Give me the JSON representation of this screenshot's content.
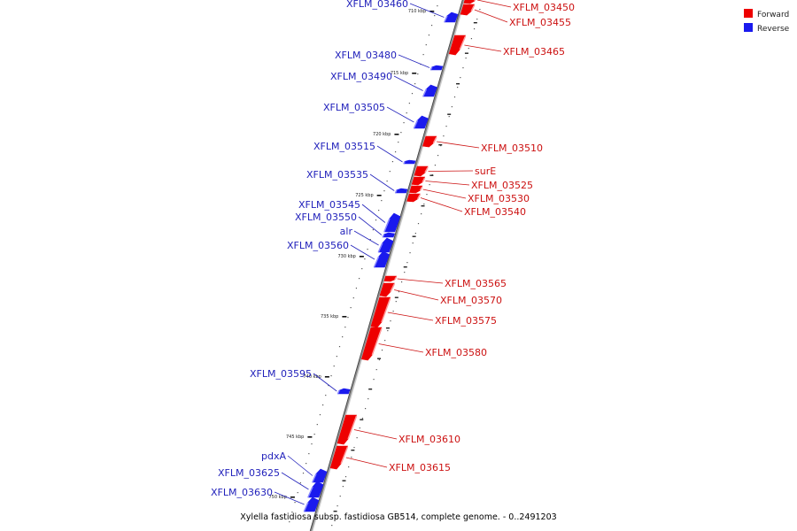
{
  "caption": "Xylella fastidiosa subsp. fastidiosa GB514, complete genome. - 0..2491203",
  "legend": {
    "forward": {
      "label": "Forward",
      "color": "#ee0000"
    },
    "reverse": {
      "label": "Reverse",
      "color": "#1a1aee"
    }
  },
  "colors": {
    "forward": "#ee0000",
    "forward_label": "#cc1111",
    "reverse": "#1a1aee",
    "reverse_label": "#2222bb",
    "backbone": "#888888"
  },
  "ticks": [
    {
      "pos": 710,
      "label": "710 kbp"
    },
    {
      "pos": 715,
      "label": "715 kbp"
    },
    {
      "pos": 720,
      "label": "720 kbp"
    },
    {
      "pos": 725,
      "label": "725 kbp"
    },
    {
      "pos": 730,
      "label": "730 kbp"
    },
    {
      "pos": 735,
      "label": "735 kbp"
    },
    {
      "pos": 740,
      "label": "740 kbp"
    },
    {
      "pos": 745,
      "label": "745 kbp"
    },
    {
      "pos": 750,
      "label": "750 kbp"
    }
  ],
  "genes": [
    {
      "name": "XFLM_03450",
      "strand": "forward"
    },
    {
      "name": "XFLM_03455",
      "strand": "forward"
    },
    {
      "name": "XFLM_03460",
      "strand": "reverse"
    },
    {
      "name": "XFLM_03465",
      "strand": "forward"
    },
    {
      "name": "XFLM_03480",
      "strand": "reverse"
    },
    {
      "name": "XFLM_03490",
      "strand": "reverse"
    },
    {
      "name": "XFLM_03505",
      "strand": "reverse"
    },
    {
      "name": "XFLM_03510",
      "strand": "forward"
    },
    {
      "name": "XFLM_03515",
      "strand": "reverse"
    },
    {
      "name": "surE",
      "strand": "forward"
    },
    {
      "name": "XFLM_03525",
      "strand": "forward"
    },
    {
      "name": "XFLM_03530",
      "strand": "forward"
    },
    {
      "name": "XFLM_03535",
      "strand": "reverse"
    },
    {
      "name": "XFLM_03540",
      "strand": "forward"
    },
    {
      "name": "XFLM_03545",
      "strand": "reverse"
    },
    {
      "name": "XFLM_03550",
      "strand": "reverse"
    },
    {
      "name": "alr",
      "strand": "reverse"
    },
    {
      "name": "XFLM_03560",
      "strand": "reverse"
    },
    {
      "name": "XFLM_03565",
      "strand": "forward"
    },
    {
      "name": "XFLM_03570",
      "strand": "forward"
    },
    {
      "name": "XFLM_03575",
      "strand": "forward"
    },
    {
      "name": "XFLM_03580",
      "strand": "forward"
    },
    {
      "name": "XFLM_03595",
      "strand": "reverse"
    },
    {
      "name": "XFLM_03610",
      "strand": "forward"
    },
    {
      "name": "XFLM_03615",
      "strand": "forward"
    },
    {
      "name": "pdxA",
      "strand": "reverse"
    },
    {
      "name": "XFLM_03625",
      "strand": "reverse"
    },
    {
      "name": "XFLM_03630",
      "strand": "reverse"
    }
  ]
}
